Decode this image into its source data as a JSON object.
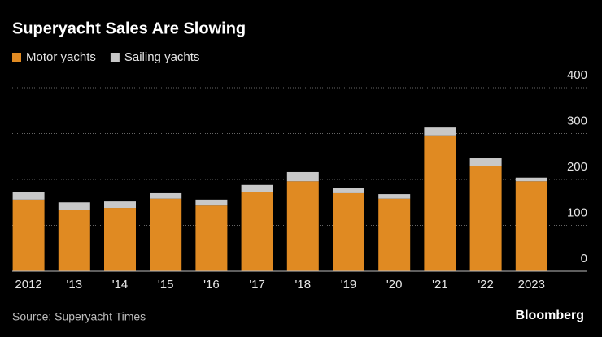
{
  "chart_data": {
    "type": "stacked_bar",
    "title": "Superyacht Sales Are Slowing",
    "categories": [
      "2012",
      "'13",
      "'14",
      "'15",
      "'16",
      "'17",
      "'18",
      "'19",
      "'20",
      "'21",
      "'22",
      "2023"
    ],
    "series": [
      {
        "name": "Motor yachts",
        "color": "#e08a22",
        "values": [
          156,
          134,
          138,
          158,
          143,
          173,
          196,
          170,
          158,
          296,
          230,
          196
        ]
      },
      {
        "name": "Sailing yachts",
        "color": "#c8c8c8",
        "values": [
          17,
          16,
          14,
          12,
          13,
          15,
          20,
          12,
          10,
          17,
          16,
          8
        ]
      }
    ],
    "ylim": [
      0,
      400
    ],
    "yticks": [
      0,
      100,
      200,
      300,
      400
    ],
    "grid": true,
    "source": "Source: Superyacht Times",
    "brand": "Bloomberg"
  }
}
